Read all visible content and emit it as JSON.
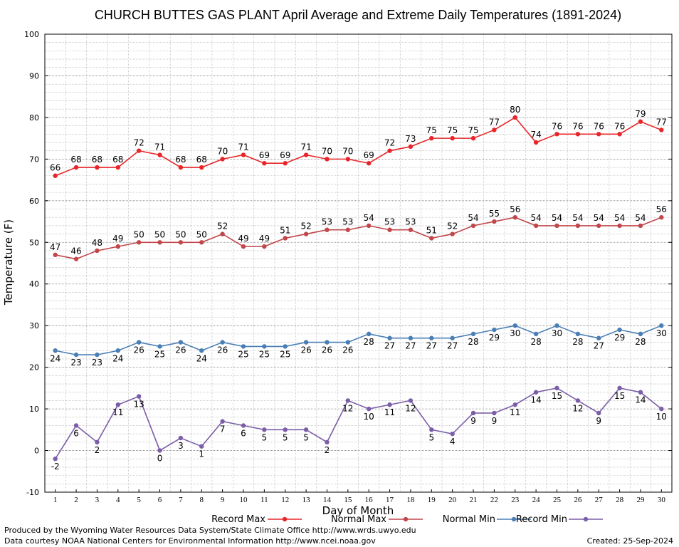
{
  "footer": {
    "line1": "Produced by the Wyoming Water Resources Data System/State Climate Office http://www.wrds.uwyo.edu",
    "line2": "Data courtesy NOAA National Centers for Environmental Information http://www.ncei.noaa.gov",
    "created": "Created:  25-Sep-2024"
  },
  "chart_data": {
    "type": "line",
    "title": "CHURCH BUTTES GAS PLANT April Average and Extreme Daily Temperatures (1891-2024)",
    "xlabel": "Day of Month",
    "ylabel": "Temperature (F)",
    "ylim": [
      -10,
      100
    ],
    "yticks": [
      -10,
      0,
      10,
      20,
      30,
      40,
      50,
      60,
      70,
      80,
      90,
      100
    ],
    "grid": true,
    "legend_position": "bottom",
    "x": [
      1,
      2,
      3,
      4,
      5,
      6,
      7,
      8,
      9,
      10,
      11,
      12,
      13,
      14,
      15,
      16,
      17,
      18,
      19,
      20,
      21,
      22,
      23,
      24,
      25,
      26,
      27,
      28,
      29,
      30
    ],
    "series": [
      {
        "name": "Record Max",
        "color": "#e8262a",
        "label_position": "above",
        "values": [
          66,
          68,
          68,
          68,
          72,
          71,
          68,
          68,
          70,
          71,
          69,
          69,
          71,
          70,
          70,
          69,
          72,
          73,
          75,
          75,
          75,
          77,
          80,
          74,
          76,
          76,
          76,
          76,
          79,
          77
        ]
      },
      {
        "name": "Normal Max",
        "color": "#c0474a",
        "label_position": "above",
        "values": [
          47,
          46,
          48,
          49,
          50,
          50,
          50,
          50,
          52,
          49,
          49,
          51,
          52,
          53,
          53,
          54,
          53,
          53,
          51,
          52,
          54,
          55,
          56,
          54,
          54,
          54,
          54,
          54,
          54,
          56
        ]
      },
      {
        "name": "Normal Min",
        "color": "#4a7fb5",
        "label_position": "below",
        "values": [
          24,
          23,
          23,
          24,
          26,
          25,
          26,
          24,
          26,
          25,
          25,
          25,
          26,
          26,
          26,
          28,
          27,
          27,
          27,
          27,
          28,
          29,
          30,
          28,
          30,
          28,
          27,
          29,
          28,
          30
        ]
      },
      {
        "name": "Record Min",
        "color": "#7b5ea7",
        "label_position": "below",
        "values": [
          -2,
          6,
          2,
          11,
          13,
          0,
          3,
          1,
          7,
          6,
          5,
          5,
          5,
          2,
          12,
          10,
          11,
          12,
          5,
          4,
          9,
          9,
          11,
          14,
          15,
          12,
          9,
          15,
          14,
          10
        ]
      }
    ]
  }
}
